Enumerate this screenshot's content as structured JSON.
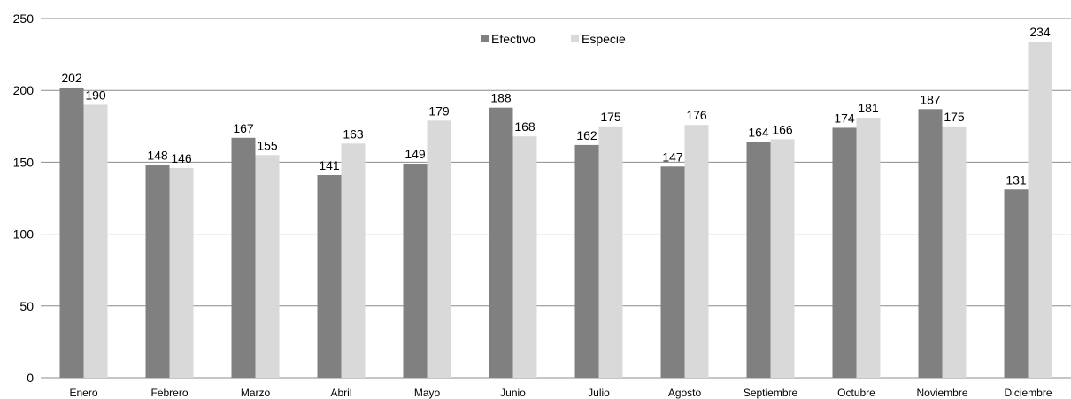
{
  "chart_data": {
    "type": "bar",
    "title": "",
    "xlabel": "",
    "ylabel": "",
    "ylim": [
      0,
      250
    ],
    "yticks": [
      0,
      50,
      100,
      150,
      200,
      250
    ],
    "grid": true,
    "legend_position": "top-center",
    "categories": [
      "Enero",
      "Febrero",
      "Marzo",
      "Abril",
      "Mayo",
      "Junio",
      "Julio",
      "Agosto",
      "Septiembre",
      "Octubre",
      "Noviembre",
      "Diciembre"
    ],
    "series": [
      {
        "name": "Efectivo",
        "color": "#808080",
        "values": [
          202,
          148,
          167,
          141,
          149,
          188,
          162,
          147,
          164,
          174,
          187,
          131
        ]
      },
      {
        "name": "Especie",
        "color": "#d9d9d9",
        "values": [
          190,
          146,
          155,
          163,
          179,
          168,
          175,
          176,
          166,
          181,
          175,
          234
        ]
      }
    ]
  }
}
